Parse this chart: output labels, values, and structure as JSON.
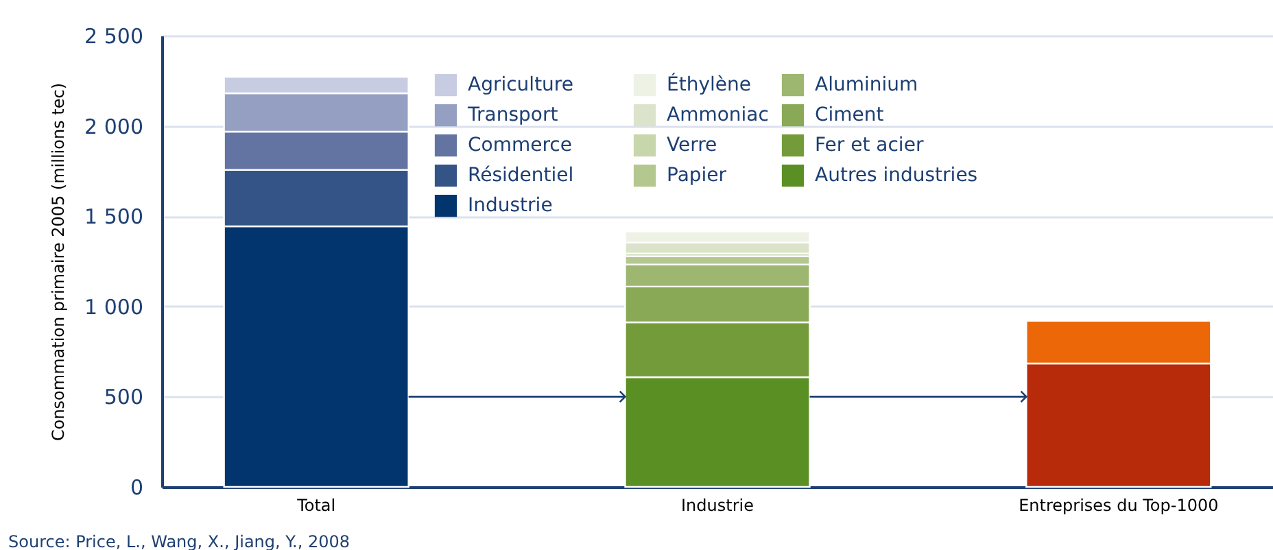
{
  "chart_data": {
    "type": "bar",
    "stacked": true,
    "ylabel": "Consommation primaire 2005 (millions tec)",
    "categories": [
      "Total",
      "Industrie",
      "Entreprises du Top-1000"
    ],
    "ylim": [
      0,
      2500
    ],
    "yticks": [
      0,
      500,
      {
        "value": 1000,
        "label": "1 000"
      },
      {
        "value": 1500,
        "label": "1 500"
      },
      {
        "value": 2000,
        "label": "2 000"
      },
      {
        "value": 2500,
        "label": "2 500"
      }
    ],
    "grid": "y",
    "legend": "top",
    "series": [
      {
        "name": "Industrie",
        "color": "#02346e",
        "values": [
          1444,
          null,
          null
        ]
      },
      {
        "name": "Résidentiel",
        "color": "#345487",
        "values": [
          312,
          null,
          null
        ]
      },
      {
        "name": "Commerce",
        "color": "#6374a3",
        "values": [
          212,
          null,
          null
        ]
      },
      {
        "name": "Transport",
        "color": "#949fc2",
        "values": [
          213,
          null,
          null
        ]
      },
      {
        "name": "Agriculture",
        "color": "#c8cce2",
        "values": [
          91,
          null,
          null
        ]
      },
      {
        "name": "Autres industries",
        "color": "#5a8f23",
        "values": [
          null,
          608,
          null
        ]
      },
      {
        "name": "Fer et acier",
        "color": "#749b3a",
        "values": [
          null,
          304,
          null
        ]
      },
      {
        "name": "Ciment",
        "color": "#89a957",
        "values": [
          null,
          198,
          null
        ]
      },
      {
        "name": "Aluminium",
        "color": "#9db670",
        "values": [
          null,
          122,
          null
        ]
      },
      {
        "name": "Papier",
        "color": "#b3c78f",
        "values": [
          null,
          46,
          null
        ]
      },
      {
        "name": "Verre",
        "color": "#c8d6ac",
        "values": [
          null,
          15,
          null
        ]
      },
      {
        "name": "Ammoniac",
        "color": "#dce3cb",
        "values": [
          null,
          61,
          null
        ]
      },
      {
        "name": "Éthylène",
        "color": "#eef2e5",
        "values": [
          null,
          61,
          null
        ]
      },
      {
        "color": "#b72b0a",
        "values": [
          null,
          null,
          684
        ]
      },
      {
        "color": "#ec6707",
        "values": [
          null,
          null,
          236
        ]
      }
    ],
    "annotations": [
      "Source: Price, L., Wang, X., Jiang, Y., 2008"
    ]
  }
}
